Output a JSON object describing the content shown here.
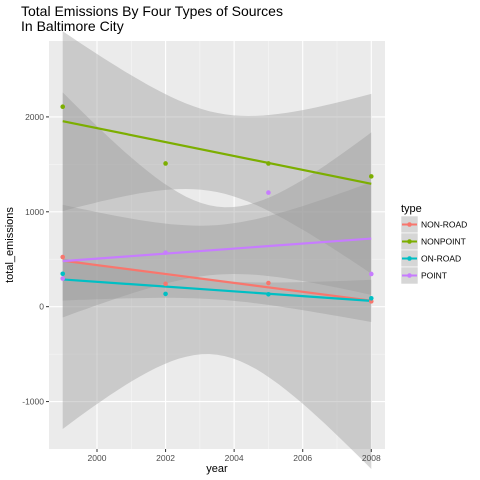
{
  "chart_data": {
    "type": "scatter",
    "title_lines": [
      "Total Emissions By Four Types of Sources",
      "In Baltimore City"
    ],
    "xlabel": "year",
    "ylabel": "total_emissions",
    "xlim": [
      1998.6,
      2008.4
    ],
    "ylim": [
      -1500,
      2800
    ],
    "xticks": [
      2000,
      2002,
      2004,
      2006,
      2008
    ],
    "yticks": [
      -1000,
      0,
      1000,
      2000
    ],
    "grid": true,
    "background": "#ebebeb",
    "smoothing": "linear fit with confidence band",
    "legend": {
      "title": "type",
      "placement": "right"
    },
    "x": [
      1999,
      2002,
      2005,
      2008
    ],
    "series": [
      {
        "name": "NON-ROAD",
        "color": "#f8766d",
        "values": [
          522.94,
          240.85,
          248.93,
          55.82
        ],
        "fit": [
          485,
          63
        ],
        "band": [
          [
            -1290,
            2265
          ],
          [
            -1050,
            2490
          ]
        ]
      },
      {
        "name": "NONPOINT",
        "color": "#7cae00",
        "values": [
          2107.63,
          1509.5,
          1509.5,
          1373.21
        ],
        "fit": [
          1955,
          1295
        ],
        "band": [
          [
            1235,
            2680
          ],
          [
            150,
            2495
          ]
        ]
      },
      {
        "name": "ON-ROAD",
        "color": "#00bfc4",
        "values": [
          346.82,
          134.31,
          130.43,
          88.28
        ],
        "fit": [
          287,
          61
        ],
        "band": [
          [
            0,
            575
          ],
          [
            -85,
            230
          ]
        ]
      },
      {
        "name": "POINT",
        "color": "#c77cff",
        "values": [
          296.8,
          569.26,
          1202.49,
          344.98
        ],
        "fit": [
          480,
          718
        ],
        "band": [
          [
            5,
            940
          ],
          [
            0,
            1440
          ]
        ]
      }
    ]
  }
}
